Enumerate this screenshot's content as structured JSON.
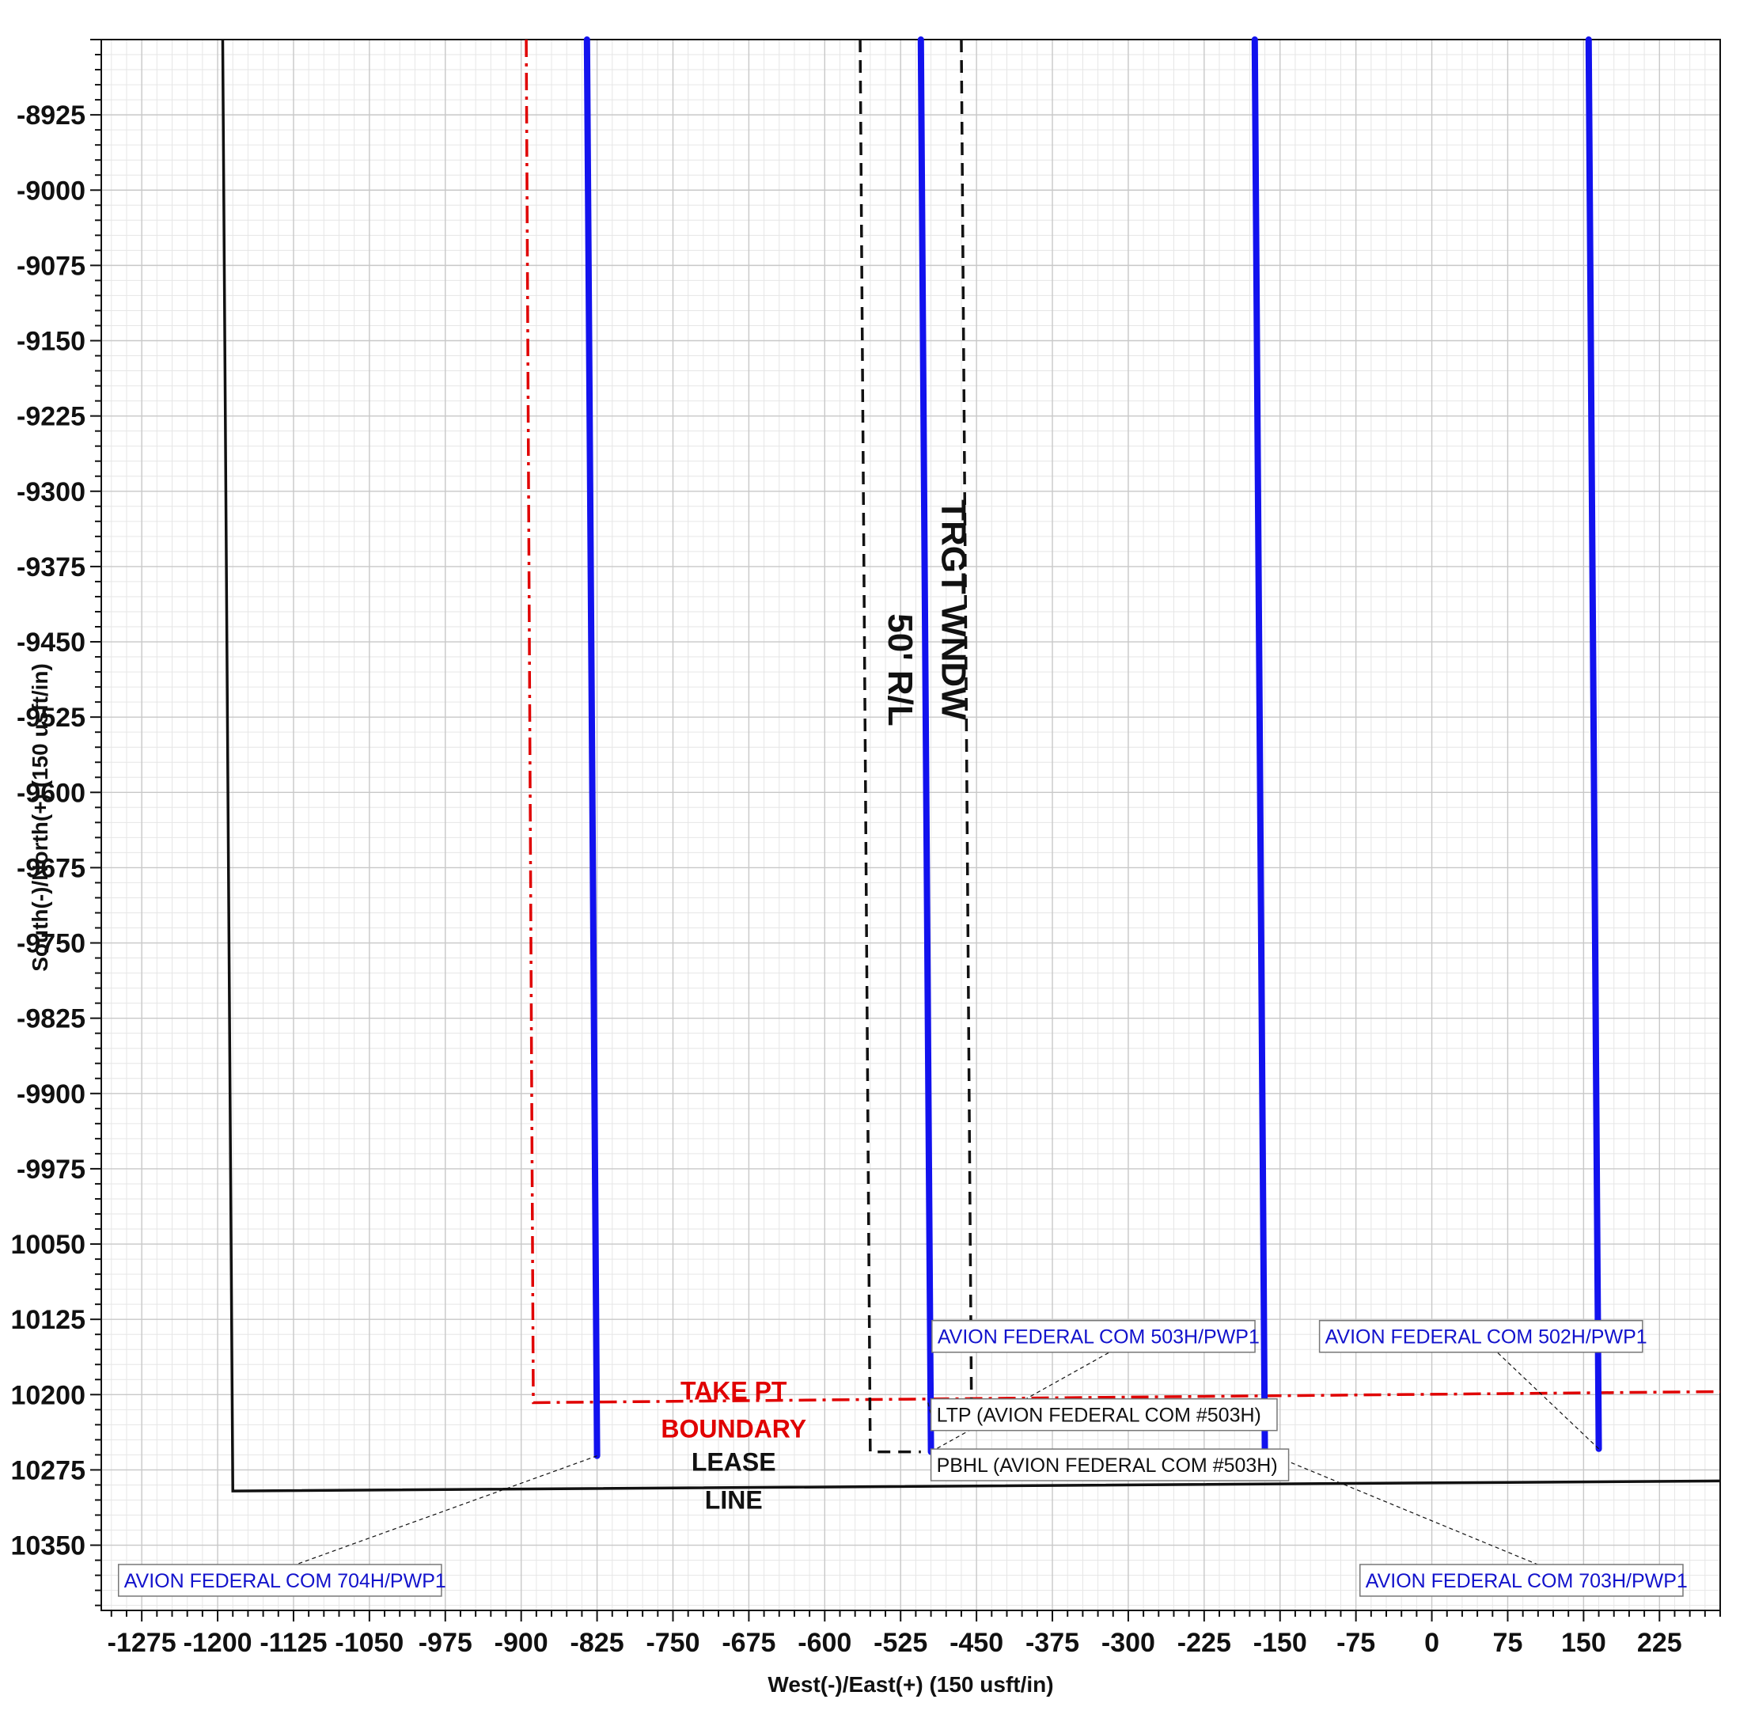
{
  "chart_data": {
    "type": "line",
    "xlabel": "West(-)/East(+) (150 usft/in)",
    "ylabel": "South(-)/North(+) (150 usft/in)",
    "xlim": [
      -1315,
      285
    ],
    "ylim": [
      -10415,
      -8850
    ],
    "x_ticks": [
      -1275,
      -1200,
      -1125,
      -1050,
      -975,
      -900,
      -825,
      -750,
      -675,
      -600,
      -525,
      -450,
      -375,
      -300,
      -225,
      -150,
      -75,
      0,
      75,
      150,
      225
    ],
    "x_tick_labels": [
      "-1275",
      "-1200",
      "-1125",
      "-1050",
      "-975",
      "-900",
      "-825",
      "-750",
      "-675",
      "-600",
      "-525",
      "-450",
      "-375",
      "-300",
      "-225",
      "-150",
      "-75",
      "0",
      "75",
      "150",
      "225"
    ],
    "y_ticks": [
      -8925,
      -9000,
      -9075,
      -9150,
      -9225,
      -9300,
      -9375,
      -9450,
      -9525,
      -9600,
      -9675,
      -9750,
      -9825,
      -9900,
      -9975,
      -10050,
      -10125,
      -10200,
      -10275,
      -10350
    ],
    "y_tick_labels": [
      "-8925",
      "-9000",
      "-9075",
      "-9150",
      "-9225",
      "-9300",
      "-9375",
      "-9450",
      "-9525",
      "-9600",
      "-9675",
      "-9750",
      "-9825",
      "-9900",
      "-9975",
      "10050",
      "10125",
      "10200",
      "10275",
      "10350"
    ],
    "grid": true,
    "colors": {
      "wellbore": "#1212ee",
      "take_point": "#e00000",
      "lease": "#111111",
      "window": "#111111",
      "label_text": "#1212cc",
      "grid_major": "#c8c8c8",
      "grid_minor": "#e6e6e6"
    },
    "series": [
      {
        "name": "AVION FEDERAL COM 704H/PWP1",
        "x": [
          -835,
          -825
        ],
        "y": [
          -8850,
          -10261
        ]
      },
      {
        "name": "AVION FEDERAL COM 503H/PWP1",
        "x": [
          -505,
          -495
        ],
        "y": [
          -8850,
          -10257
        ]
      },
      {
        "name": "AVION FEDERAL COM 703H/PWP1",
        "x": [
          -175,
          -165
        ],
        "y": [
          -8850,
          -10257
        ]
      },
      {
        "name": "AVION FEDERAL COM 502H/PWP1",
        "x": [
          155,
          165
        ],
        "y": [
          -8850,
          -10254
        ]
      }
    ],
    "boundaries": [
      {
        "id": "lease_line",
        "style": "solid",
        "points": [
          [
            -1195,
            -8850
          ],
          [
            -1185,
            -10296
          ],
          [
            285,
            -10286
          ]
        ]
      },
      {
        "id": "take_point_boundary",
        "style": "dashdot",
        "points": [
          [
            -895,
            -8850
          ],
          [
            -888,
            -10208
          ],
          [
            285,
            -10197
          ]
        ]
      },
      {
        "id": "window_left",
        "style": "dashed",
        "points": [
          [
            -565,
            -8850
          ],
          [
            -555,
            -10257
          ],
          [
            -505,
            -10257
          ]
        ]
      },
      {
        "id": "window_right",
        "style": "dashed",
        "points": [
          [
            -465,
            -8850
          ],
          [
            -455,
            -10208
          ]
        ]
      }
    ],
    "annotations": [
      {
        "id": "lease",
        "lines": [
          "LEASE",
          "LINE"
        ],
        "x": -690,
        "y": -10286,
        "color": "#111111",
        "rotate": 0
      },
      {
        "id": "take",
        "lines": [
          "TAKE PT",
          "BOUNDARY"
        ],
        "x": -690,
        "y": -10215,
        "color": "#e00000",
        "rotate": 0
      },
      {
        "id": "rl",
        "lines": [
          "50' R/L"
        ],
        "x": -537,
        "y": -9478,
        "color": "#111111",
        "rotate": 90
      },
      {
        "id": "trgt",
        "lines": [
          "TRGT WNDW"
        ],
        "x": -484,
        "y": -9418,
        "color": "#111111",
        "rotate": 90
      }
    ],
    "point_labels": [
      {
        "text": "LTP (AVION FEDERAL COM #503H)",
        "x": -495,
        "y": -10220,
        "color": "#111111",
        "anchor_x": -498,
        "anchor_y": -10208
      },
      {
        "text": "PBHL (AVION FEDERAL COM #503H)",
        "x": -495,
        "y": -10270,
        "color": "#111111",
        "anchor_x": -495,
        "anchor_y": -10257
      }
    ],
    "well_labels": [
      {
        "text": "AVION FEDERAL COM 503H/PWP1",
        "x": -494,
        "y": -10142,
        "color": "#1212cc"
      },
      {
        "text": "AVION FEDERAL COM 502H/PWP1",
        "x": -111,
        "y": -10142,
        "color": "#1212cc"
      },
      {
        "text": "AVION FEDERAL COM 704H/PWP1",
        "x": -1298,
        "y": -10385,
        "color": "#1212cc"
      },
      {
        "text": "AVION FEDERAL COM 703H/PWP1",
        "x": -71,
        "y": -10385,
        "color": "#1212cc"
      }
    ]
  }
}
